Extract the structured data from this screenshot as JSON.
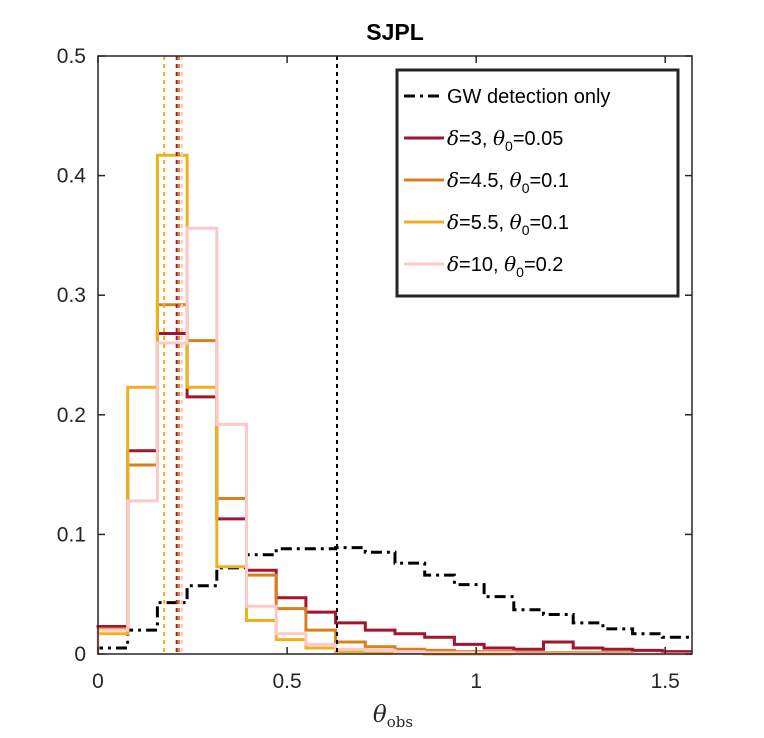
{
  "chart_data": {
    "type": "histogram",
    "title": "SJPL",
    "xlabel": "θobs",
    "xlabel_main": "θ",
    "xlabel_sub": "obs",
    "ylabel": "",
    "xlim": [
      0,
      1.5708
    ],
    "ylim": [
      0,
      0.5
    ],
    "xticks": [
      0,
      0.5,
      1,
      1.5
    ],
    "xtick_labels": [
      "0",
      "0.5",
      "1",
      "1.5"
    ],
    "yticks": [
      0,
      0.1,
      0.2,
      0.3,
      0.4,
      0.5
    ],
    "ytick_labels": [
      "0",
      "0.1",
      "0.2",
      "0.3",
      "0.4",
      "0.5"
    ],
    "bin_edges": [
      0,
      0.0785,
      0.157,
      0.2356,
      0.3142,
      0.3927,
      0.4712,
      0.5498,
      0.6283,
      0.7069,
      0.7854,
      0.8639,
      0.9425,
      1.021,
      1.0996,
      1.1781,
      1.2566,
      1.3352,
      1.4137,
      1.4923,
      1.5708
    ],
    "legend_position": "top-right",
    "series": [
      {
        "name": "GW detection only",
        "legend_parts": [
          "GW detection only"
        ],
        "color": "#000000",
        "style": "dashdot",
        "values": [
          0.005,
          0.02,
          0.043,
          0.057,
          0.072,
          0.083,
          0.088,
          0.088,
          0.089,
          0.085,
          0.076,
          0.066,
          0.058,
          0.048,
          0.037,
          0.033,
          0.026,
          0.021,
          0.017,
          0.014
        ],
        "median": 0.632
      },
      {
        "name": "δ=3, θ0=0.05",
        "legend_parts": [
          "δ",
          "=3, ",
          "θ",
          "0",
          "=0.05"
        ],
        "color": "#A2142F",
        "style": "solid",
        "values": [
          0.023,
          0.17,
          0.268,
          0.215,
          0.113,
          0.07,
          0.047,
          0.035,
          0.026,
          0.02,
          0.017,
          0.014,
          0.008,
          0.005,
          0.004,
          0.01,
          0.005,
          0.004,
          0.003,
          0.002
        ],
        "median": 0.208
      },
      {
        "name": "δ=4.5, θ0=0.1",
        "legend_parts": [
          "δ",
          "=4.5, ",
          "θ",
          "0",
          "=0.1"
        ],
        "color": "#D9801A",
        "style": "solid",
        "values": [
          0.021,
          0.158,
          0.292,
          0.262,
          0.13,
          0.066,
          0.038,
          0.02,
          0.01,
          0.006,
          0.004,
          0.003,
          0.002,
          0.002,
          0.001,
          0.001,
          0.001,
          0.001,
          0.0,
          0.0
        ],
        "median": 0.214
      },
      {
        "name": "δ=5.5, θ0=0.1",
        "legend_parts": [
          "δ",
          "=5.5, ",
          "θ",
          "0",
          "=0.1"
        ],
        "color": "#EDB120",
        "style": "solid",
        "values": [
          0.017,
          0.223,
          0.417,
          0.223,
          0.073,
          0.028,
          0.012,
          0.005,
          0.002,
          0.001,
          0.001,
          0.0,
          0.0,
          0.0,
          0.0,
          0.0,
          0.0,
          0.0,
          0.0,
          0.0
        ],
        "median": 0.175
      },
      {
        "name": "δ=10, θ0=0.2",
        "legend_parts": [
          "δ",
          "=10, ",
          "θ",
          "0",
          "=0.2"
        ],
        "color": "#FFC8C8",
        "style": "solid",
        "values": [
          0.02,
          0.128,
          0.26,
          0.356,
          0.192,
          0.04,
          0.017,
          0.008,
          0.004,
          0.003,
          0.002,
          0.001,
          0.001,
          0.001,
          0.0,
          0.0,
          0.0,
          0.0,
          0.0,
          0.0
        ],
        "median": 0.222
      }
    ]
  }
}
